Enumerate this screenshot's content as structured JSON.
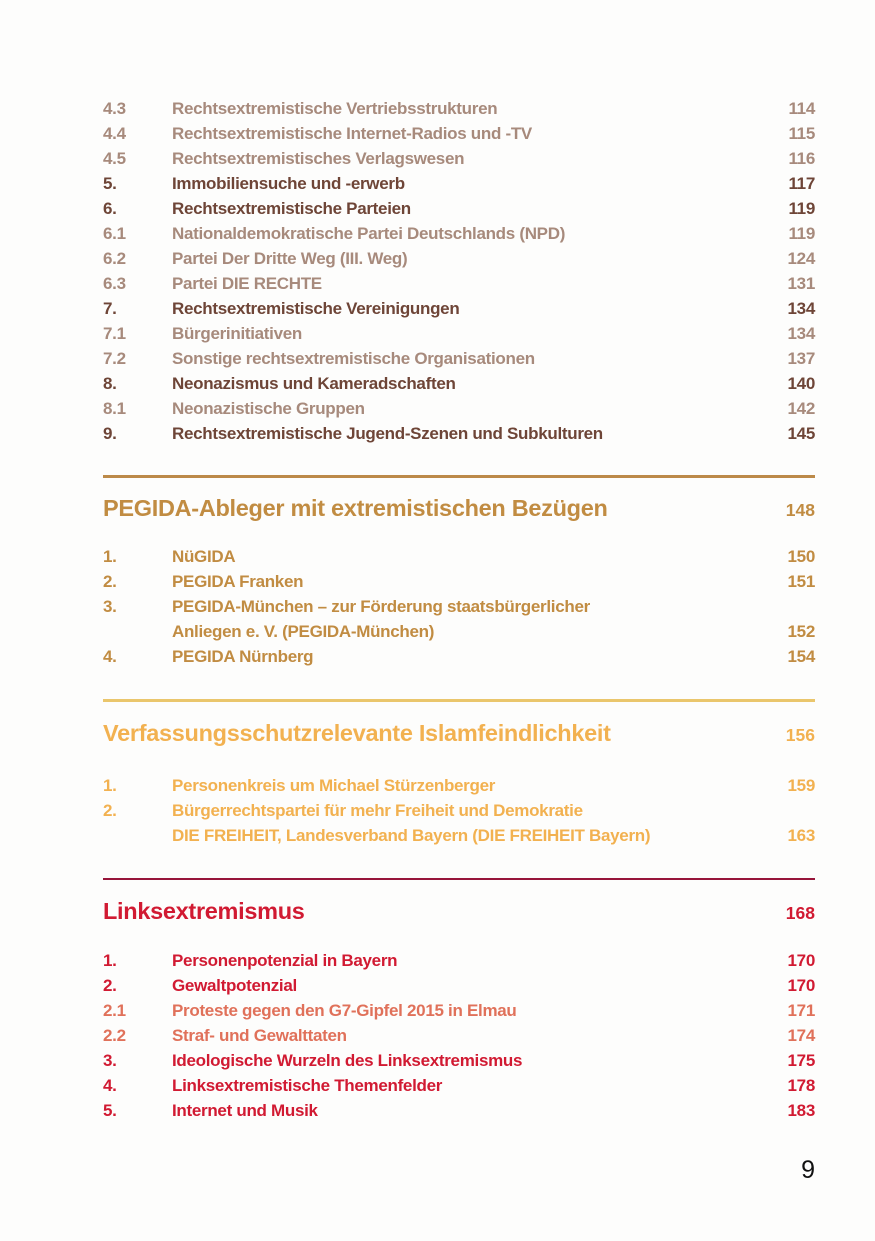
{
  "page_number": "9",
  "colors": {
    "background": "#fdfdfc",
    "brown_main": "#6e4537",
    "brown_sub": "#a78a7c",
    "gold": "#c18c42",
    "amber": "#f2b150",
    "red_main": "#d11a32",
    "red_sub": "#e0715a",
    "divider_gold": "#bc8a49",
    "divider_light_gold": "#eac66c",
    "divider_crimson": "#97153a",
    "page_number_color": "#111111"
  },
  "sections": [
    {
      "id": "rechtsextremismus-continued",
      "theme": "brown",
      "heading": null,
      "rows": [
        {
          "num": "4.3",
          "title": "Rechtsextremistische Vertriebsstrukturen",
          "page": "114",
          "variant": "sub"
        },
        {
          "num": "4.4",
          "title": "Rechtsextremistische Internet-Radios und -TV",
          "page": "115",
          "variant": "sub"
        },
        {
          "num": "4.5",
          "title": "Rechtsextremistisches Verlagswesen",
          "page": "116",
          "variant": "sub"
        },
        {
          "num": "5.",
          "title": "Immobiliensuche und -erwerb",
          "page": "117",
          "variant": "main"
        },
        {
          "num": "6.",
          "title": "Rechtsextremistische Parteien",
          "page": "119",
          "variant": "main"
        },
        {
          "num": "6.1",
          "title": "Nationaldemokratische Partei Deutschlands (NPD)",
          "page": "119",
          "variant": "sub"
        },
        {
          "num": "6.2",
          "title": "Partei Der Dritte Weg (III. Weg)",
          "page": "124",
          "variant": "sub"
        },
        {
          "num": "6.3",
          "title": "Partei DIE RECHTE",
          "page": "131",
          "variant": "sub"
        },
        {
          "num": "7.",
          "title": "Rechtsextremistische Vereinigungen",
          "page": "134",
          "variant": "main"
        },
        {
          "num": "7.1",
          "title": "Bürgerinitiativen",
          "page": "134",
          "variant": "sub"
        },
        {
          "num": "7.2",
          "title": "Sonstige rechtsextremistische Organisationen",
          "page": "137",
          "variant": "sub"
        },
        {
          "num": "8.",
          "title": "Neonazismus und Kameradschaften",
          "page": "140",
          "variant": "main"
        },
        {
          "num": "8.1",
          "title": "Neonazistische Gruppen",
          "page": "142",
          "variant": "sub"
        },
        {
          "num": "9.",
          "title": "Rechtsextremistische Jugend-Szenen und Subkulturen",
          "page": "145",
          "variant": "main"
        }
      ]
    },
    {
      "id": "pegida",
      "theme": "gold",
      "heading": {
        "title": "PEGIDA-Ableger mit extremistischen Bezügen",
        "page": "148"
      },
      "rows": [
        {
          "num": "1.",
          "title": "NüGIDA",
          "page": "150",
          "variant": "main"
        },
        {
          "num": "2.",
          "title": "PEGIDA Franken",
          "page": "151",
          "variant": "main"
        },
        {
          "num": "3.",
          "title": "PEGIDA-München – zur Förderung staatsbürgerlicher",
          "page": "",
          "variant": "main"
        },
        {
          "num": "",
          "title": "Anliegen e. V. (PEGIDA-München)",
          "page": "152",
          "variant": "main"
        },
        {
          "num": "4.",
          "title": "PEGIDA Nürnberg",
          "page": "154",
          "variant": "main"
        }
      ]
    },
    {
      "id": "islamfeindlichkeit",
      "theme": "amber",
      "heading": {
        "title": "Verfassungsschutzrelevante Islamfeindlichkeit",
        "page": "156"
      },
      "rows": [
        {
          "num": "1.",
          "title": "Personenkreis um Michael Stürzenberger",
          "page": "159",
          "variant": "main"
        },
        {
          "num": "2.",
          "title": "Bürgerrechtspartei für mehr Freiheit und Demokratie",
          "page": "",
          "variant": "main"
        },
        {
          "num": "",
          "title": "DIE FREIHEIT, Landesverband Bayern (DIE FREIHEIT Bayern)",
          "page": "163",
          "variant": "main"
        }
      ]
    },
    {
      "id": "linksextremismus",
      "theme": "red",
      "heading": {
        "title": "Linksextremismus",
        "page": "168"
      },
      "rows": [
        {
          "num": "1.",
          "title": "Personenpotenzial in Bayern",
          "page": "170",
          "variant": "main"
        },
        {
          "num": "2.",
          "title": "Gewaltpotenzial",
          "page": "170",
          "variant": "main"
        },
        {
          "num": "2.1",
          "title": "Proteste gegen den G7-Gipfel 2015 in Elmau",
          "page": "171",
          "variant": "sub"
        },
        {
          "num": "2.2",
          "title": "Straf- und Gewalttaten",
          "page": "174",
          "variant": "sub"
        },
        {
          "num": "3.",
          "title": "Ideologische Wurzeln des Linksextremismus",
          "page": "175",
          "variant": "main"
        },
        {
          "num": "4.",
          "title": "Linksextremistische Themenfelder",
          "page": "178",
          "variant": "main"
        },
        {
          "num": "5.",
          "title": "Internet und Musik",
          "page": "183",
          "variant": "main"
        }
      ]
    }
  ]
}
